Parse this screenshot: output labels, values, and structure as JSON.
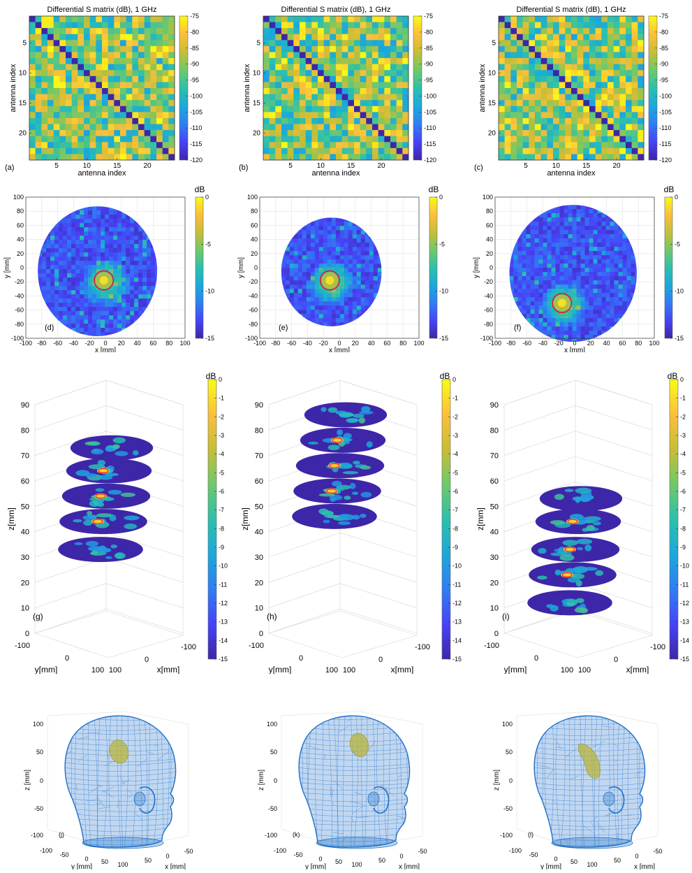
{
  "colors": {
    "parula": [
      "#3e26a8",
      "#4743f8",
      "#2f7ef3",
      "#1ba9da",
      "#2cc0ad",
      "#6fc96a",
      "#c7be36",
      "#fcbf3b",
      "#f9fb15"
    ],
    "ring": "#e8112b",
    "mesh": "#1f6fc8",
    "tumor": "#b8b43c"
  },
  "chart_data": [
    {
      "type": "heatmap",
      "panel": "(a)",
      "title": "Differential S matrix (dB), 1 GHz",
      "xlabel": "antenna index",
      "ylabel": "antenna index",
      "xticks": [
        5,
        10,
        15,
        20
      ],
      "yticks": [
        5,
        10,
        15,
        20
      ],
      "size": 24,
      "diagonal_min": true,
      "colorbar": {
        "ticks": [
          -75,
          -80,
          -85,
          -90,
          -95,
          -100,
          -105,
          -110,
          -115,
          -120
        ],
        "clim": [
          -120,
          -75
        ]
      }
    },
    {
      "type": "heatmap",
      "panel": "(b)",
      "title": "Differential S matrix (dB), 1 GHz",
      "xlabel": "antenna index",
      "ylabel": "antenna index",
      "xticks": [
        5,
        10,
        15,
        20
      ],
      "yticks": [
        5,
        10,
        15,
        20
      ],
      "size": 24,
      "diagonal_min": true,
      "colorbar": {
        "ticks": [
          -75,
          -80,
          -85,
          -90,
          -95,
          -100,
          -105,
          -110,
          -115,
          -120
        ],
        "clim": [
          -120,
          -75
        ]
      }
    },
    {
      "type": "heatmap",
      "panel": "(c)",
      "title": "Differential S matrix (dB), 1 GHz",
      "xlabel": "antenna index",
      "ylabel": "antenna index",
      "xticks": [
        5,
        10,
        15,
        20
      ],
      "yticks": [
        5,
        10,
        15,
        20
      ],
      "size": 24,
      "diagonal_min": true,
      "colorbar": {
        "ticks": [
          -75,
          -80,
          -85,
          -90,
          -95,
          -100,
          -105,
          -110,
          -115,
          -120
        ],
        "clim": [
          -120,
          -75
        ]
      }
    },
    {
      "type": "heatmap",
      "panel": "(d)",
      "xlabel": "x [mm]",
      "ylabel": "y [mm]",
      "xlim": [
        -100,
        100
      ],
      "ylim": [
        -100,
        100
      ],
      "xticks": [
        -100,
        -80,
        -60,
        -40,
        -20,
        0,
        20,
        40,
        60,
        80,
        100
      ],
      "yticks": [
        100,
        80,
        60,
        40,
        20,
        0,
        -20,
        -40,
        -60,
        -80,
        -100
      ],
      "head": {
        "cx": -10,
        "cy": -5,
        "rx": 75,
        "ry": 92
      },
      "target": {
        "x": -2,
        "y": -18,
        "r": 12
      },
      "colorbar": {
        "unit": "dB",
        "ticks": [
          0,
          -5,
          -10,
          -15
        ],
        "clim": [
          -15,
          0
        ]
      }
    },
    {
      "type": "heatmap",
      "panel": "(e)",
      "xlabel": "x [mm]",
      "ylabel": "y [mm]",
      "xlim": [
        -100,
        100
      ],
      "ylim": [
        -100,
        100
      ],
      "xticks": [
        -100,
        -80,
        -60,
        -40,
        -20,
        0,
        20,
        40,
        60,
        80,
        100
      ],
      "yticks": [
        100,
        80,
        60,
        40,
        20,
        0,
        -20,
        -40,
        -60,
        -80,
        -100
      ],
      "head": {
        "cx": -10,
        "cy": -6,
        "rx": 63,
        "ry": 77
      },
      "target": {
        "x": -12,
        "y": -18,
        "r": 12
      },
      "colorbar": {
        "unit": "dB",
        "ticks": [
          0,
          -5,
          -10,
          -15
        ],
        "clim": [
          -15,
          0
        ]
      }
    },
    {
      "type": "heatmap",
      "panel": "(f)",
      "xlabel": "x [mm]",
      "ylabel": "y [mm]",
      "xlim": [
        -100,
        100
      ],
      "ylim": [
        -100,
        100
      ],
      "xticks": [
        -100,
        -80,
        -60,
        -40,
        -20,
        0,
        20,
        40,
        60,
        80,
        100
      ],
      "yticks": [
        100,
        80,
        60,
        40,
        20,
        0,
        -20,
        -40,
        -60,
        -80,
        -100
      ],
      "head": {
        "cx": -2,
        "cy": -8,
        "rx": 80,
        "ry": 97
      },
      "target": {
        "x": -16,
        "y": -50,
        "r": 12
      },
      "colorbar": {
        "unit": "dB",
        "ticks": [
          0,
          -5,
          -10,
          -15
        ],
        "clim": [
          -15,
          0
        ]
      }
    },
    {
      "type": "heatmap",
      "panel": "(g)",
      "xlabel": "x[mm]",
      "ylabel": "y[mm]",
      "zlabel": "z[mm]",
      "zticks": [
        0,
        10,
        20,
        30,
        40,
        50,
        60,
        70,
        80,
        90
      ],
      "yticks3d": [
        "-100",
        "0",
        "100"
      ],
      "xticks3d": [
        "100",
        "0",
        "-100"
      ],
      "slices_z": [
        33,
        44,
        54,
        64,
        73
      ],
      "hotspot_slices": [
        1,
        2,
        3
      ],
      "colorbar": {
        "unit": "dB",
        "ticks": [
          0,
          -1,
          -2,
          -3,
          -4,
          -5,
          -6,
          -7,
          -8,
          -9,
          -10,
          -11,
          -12,
          -13,
          -14,
          -15
        ],
        "clim": [
          -15,
          0
        ]
      }
    },
    {
      "type": "heatmap",
      "panel": "(h)",
      "xlabel": "x[mm]",
      "ylabel": "y[mm]",
      "zlabel": "z[mm]",
      "zticks": [
        0,
        10,
        20,
        30,
        40,
        50,
        60,
        70,
        80,
        90
      ],
      "yticks3d": [
        "-100",
        "0",
        "100"
      ],
      "xticks3d": [
        "100",
        "0",
        "-100"
      ],
      "slices_z": [
        46,
        56,
        66,
        76,
        86
      ],
      "hotspot_slices": [
        1,
        2,
        3
      ],
      "colorbar": {
        "unit": "dB",
        "ticks": [
          0,
          -1,
          -2,
          -3,
          -4,
          -5,
          -6,
          -7,
          -8,
          -9,
          -10,
          -11,
          -12,
          -13,
          -14,
          -15
        ],
        "clim": [
          -15,
          0
        ]
      }
    },
    {
      "type": "heatmap",
      "panel": "(i)",
      "xlabel": "x[mm]",
      "ylabel": "y[mm]",
      "zlabel": "z[mm]",
      "zticks": [
        0,
        10,
        20,
        30,
        40,
        50,
        60,
        70,
        80,
        90
      ],
      "yticks3d": [
        "-100",
        "0",
        "100"
      ],
      "xticks3d": [
        "100",
        "0",
        "-100"
      ],
      "slices_z": [
        12,
        23,
        33,
        44,
        53
      ],
      "hotspot_slices": [
        1,
        2,
        3
      ],
      "colorbar": {
        "unit": "dB",
        "ticks": [
          0,
          -1,
          -2,
          -3,
          -4,
          -5,
          -6,
          -7,
          -8,
          -9,
          -10,
          -11,
          -12,
          -13,
          -14,
          -15
        ],
        "clim": [
          -15,
          0
        ]
      }
    },
    {
      "type": "mesh",
      "panel": "(j)",
      "xlabel": "x [mm]",
      "ylabel": "y [mm]",
      "zlabel": "z [mm]",
      "zticks": [
        100,
        50,
        0,
        -50,
        -100
      ],
      "yticks3d": [
        "-100",
        "-50",
        "0",
        "50",
        "100"
      ],
      "xticks3d": [
        "50",
        "0",
        "-50"
      ],
      "tumor": {
        "u": 0.47,
        "v": 0.26,
        "shape": "round"
      }
    },
    {
      "type": "mesh",
      "panel": "(k)",
      "xlabel": "x [mm]",
      "ylabel": "y [mm]",
      "zlabel": "z [mm]",
      "zticks": [
        100,
        50,
        0,
        -50,
        -100
      ],
      "yticks3d": [
        "-100",
        "-50",
        "0",
        "50",
        "100"
      ],
      "xticks3d": [
        "50",
        "0",
        "-50"
      ],
      "tumor": {
        "u": 0.53,
        "v": 0.21,
        "shape": "round"
      }
    },
    {
      "type": "mesh",
      "panel": "(l)",
      "xlabel": "x [mm]",
      "ylabel": "y [mm]",
      "zlabel": "z [mm]",
      "zticks": [
        100,
        50,
        0,
        -50,
        -100
      ],
      "yticks3d": [
        "-100",
        "-50",
        "0",
        "50",
        "100"
      ],
      "xticks3d": [
        "50",
        "0",
        "-50"
      ],
      "tumor": {
        "u": 0.5,
        "v": 0.34,
        "shape": "elongated"
      }
    }
  ]
}
